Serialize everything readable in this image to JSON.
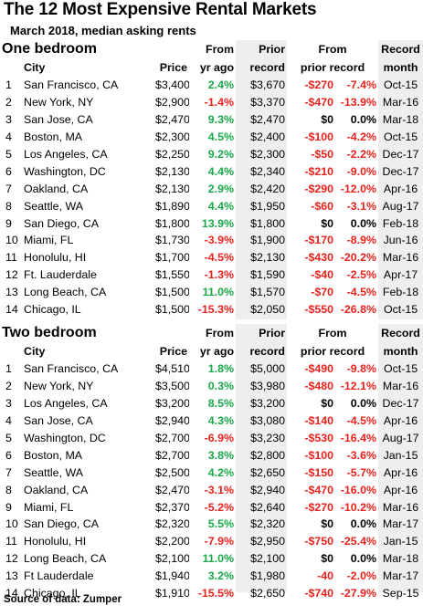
{
  "title": "The 12 Most Expensive Rental Markets",
  "subtitle": "March 2018, median asking rents",
  "footer": "Source of data: Zumper",
  "colors": {
    "positive": "#1aa84a",
    "negative": "#e8231d",
    "shade": "#eeeeee"
  },
  "sections": [
    {
      "id": "one",
      "title": "One bedroom",
      "head1": {
        "from": "From",
        "prior": "Prior",
        "from_prior": "From",
        "record": "Record"
      },
      "head2": {
        "city": "City",
        "price": "Price",
        "yr_ago": "yr ago",
        "record": "record",
        "prior_record": "prior record",
        "month": "month"
      },
      "rows": [
        {
          "rank": "1",
          "city": "San Francisco, CA",
          "price": "$3,400",
          "yr": "2.4%",
          "prior": "$3,670",
          "diff": "-$270",
          "pct": "-7.4%",
          "month": "Oct-15"
        },
        {
          "rank": "2",
          "city": "New York, NY",
          "price": "$2,900",
          "yr": "-1.4%",
          "prior": "$3,370",
          "diff": "-$470",
          "pct": "-13.9%",
          "month": "Mar-16"
        },
        {
          "rank": "3",
          "city": "San Jose, CA",
          "price": "$2,470",
          "yr": "9.3%",
          "prior": "$2,470",
          "diff": "$0",
          "pct": "0.0%",
          "month": "Mar-18"
        },
        {
          "rank": "4",
          "city": "Boston, MA",
          "price": "$2,300",
          "yr": "4.5%",
          "prior": "$2,400",
          "diff": "-$100",
          "pct": "-4.2%",
          "month": "Oct-15"
        },
        {
          "rank": "5",
          "city": "Los Angeles, CA",
          "price": "$2,250",
          "yr": "9.2%",
          "prior": "$2,300",
          "diff": "-$50",
          "pct": "-2.2%",
          "month": "Dec-17"
        },
        {
          "rank": "6",
          "city": "Washington, DC",
          "price": "$2,130",
          "yr": "4.4%",
          "prior": "$2,340",
          "diff": "-$210",
          "pct": "-9.0%",
          "month": "Dec-17"
        },
        {
          "rank": "7",
          "city": "Oakland, CA",
          "price": "$2,130",
          "yr": "2.9%",
          "prior": "$2,420",
          "diff": "-$290",
          "pct": "-12.0%",
          "month": "Apr-16"
        },
        {
          "rank": "8",
          "city": "Seattle, WA",
          "price": "$1,890",
          "yr": "4.4%",
          "prior": "$1,950",
          "diff": "-$60",
          "pct": "-3.1%",
          "month": "Aug-17"
        },
        {
          "rank": "9",
          "city": "San Diego, CA",
          "price": "$1,800",
          "yr": "13.9%",
          "prior": "$1,800",
          "diff": "$0",
          "pct": "0.0%",
          "month": "Feb-18"
        },
        {
          "rank": "10",
          "city": "Miami, FL",
          "price": "$1,730",
          "yr": "-3.9%",
          "prior": "$1,900",
          "diff": "-$170",
          "pct": "-8.9%",
          "month": "Jun-16"
        },
        {
          "rank": "11",
          "city": "Honolulu, HI",
          "price": "$1,700",
          "yr": "-4.5%",
          "prior": "$2,130",
          "diff": "-$430",
          "pct": "-20.2%",
          "month": "Mar-16"
        },
        {
          "rank": "12",
          "city": "Ft. Lauderdale",
          "price": "$1,550",
          "yr": "-1.3%",
          "prior": "$1,590",
          "diff": "-$40",
          "pct": "-2.5%",
          "month": "Apr-17"
        },
        {
          "rank": "13",
          "city": "Long Beach, CA",
          "price": "$1,500",
          "yr": "11.0%",
          "prior": "$1,570",
          "diff": "-$70",
          "pct": "-4.5%",
          "month": "Feb-18"
        },
        {
          "rank": "14",
          "city": "Chicago, IL",
          "price": "$1,500",
          "yr": "-15.3%",
          "prior": "$2,050",
          "diff": "-$550",
          "pct": "-26.8%",
          "month": "Oct-15"
        }
      ]
    },
    {
      "id": "two",
      "title": "Two bedroom",
      "head1": {
        "from": "From",
        "prior": "Prior",
        "from_prior": "From",
        "record": "Record"
      },
      "head2": {
        "city": "City",
        "price": "Price",
        "yr_ago": "yr ago",
        "record": "record",
        "prior_record": "prior record",
        "month": "month"
      },
      "rows": [
        {
          "rank": "1",
          "city": "San Francisco, CA",
          "price": "$4,510",
          "yr": "1.8%",
          "prior": "$5,000",
          "diff": "-$490",
          "pct": "-9.8%",
          "month": "Oct-15"
        },
        {
          "rank": "2",
          "city": "New York, NY",
          "price": "$3,500",
          "yr": "0.3%",
          "prior": "$3,980",
          "diff": "-$480",
          "pct": "-12.1%",
          "month": "Mar-16"
        },
        {
          "rank": "3",
          "city": "Los Angeles, CA",
          "price": "$3,200",
          "yr": "8.5%",
          "prior": "$3,200",
          "diff": "$0",
          "pct": "0.0%",
          "month": "Dec-17"
        },
        {
          "rank": "4",
          "city": "San Jose, CA",
          "price": "$2,940",
          "yr": "4.3%",
          "prior": "$3,080",
          "diff": "-$140",
          "pct": "-4.5%",
          "month": "Apr-16"
        },
        {
          "rank": "5",
          "city": "Washington, DC",
          "price": "$2,700",
          "yr": "-6.9%",
          "prior": "$3,230",
          "diff": "-$530",
          "pct": "-16.4%",
          "month": "Aug-17"
        },
        {
          "rank": "6",
          "city": "Boston, MA",
          "price": "$2,700",
          "yr": "3.8%",
          "prior": "$2,800",
          "diff": "-$100",
          "pct": "-3.6%",
          "month": "Jan-15"
        },
        {
          "rank": "7",
          "city": "Seattle, WA",
          "price": "$2,500",
          "yr": "4.2%",
          "prior": "$2,650",
          "diff": "-$150",
          "pct": "-5.7%",
          "month": "Apr-16"
        },
        {
          "rank": "8",
          "city": "Oakland, CA",
          "price": "$2,470",
          "yr": "-3.1%",
          "prior": "$2,940",
          "diff": "-$470",
          "pct": "-16.0%",
          "month": "Apr-16"
        },
        {
          "rank": "9",
          "city": "Miami, FL",
          "price": "$2,370",
          "yr": "-5.2%",
          "prior": "$2,640",
          "diff": "-$270",
          "pct": "-10.2%",
          "month": "Mar-16"
        },
        {
          "rank": "10",
          "city": "San Diego, CA",
          "price": "$2,320",
          "yr": "5.5%",
          "prior": "$2,320",
          "diff": "$0",
          "pct": "0.0%",
          "month": "Mar-17"
        },
        {
          "rank": "11",
          "city": "Honolulu, HI",
          "price": "$2,200",
          "yr": "-7.9%",
          "prior": "$2,950",
          "diff": "-$750",
          "pct": "-25.4%",
          "month": "Jan-15"
        },
        {
          "rank": "12",
          "city": "Long Beach, CA",
          "price": "$2,100",
          "yr": "11.0%",
          "prior": "$2,100",
          "diff": "$0",
          "pct": "0.0%",
          "month": "Mar-18"
        },
        {
          "rank": "13",
          "city": "Ft Lauderdale",
          "price": "$1,940",
          "yr": "3.2%",
          "prior": "$1,980",
          "diff": "-40",
          "pct": "-2.0%",
          "month": "Mar-17"
        },
        {
          "rank": "14",
          "city": "Chicago, IL",
          "price": "$1,910",
          "yr": "-15.5%",
          "prior": "$2,650",
          "diff": "-$740",
          "pct": "-27.9%",
          "month": "Sep-15"
        }
      ]
    }
  ]
}
